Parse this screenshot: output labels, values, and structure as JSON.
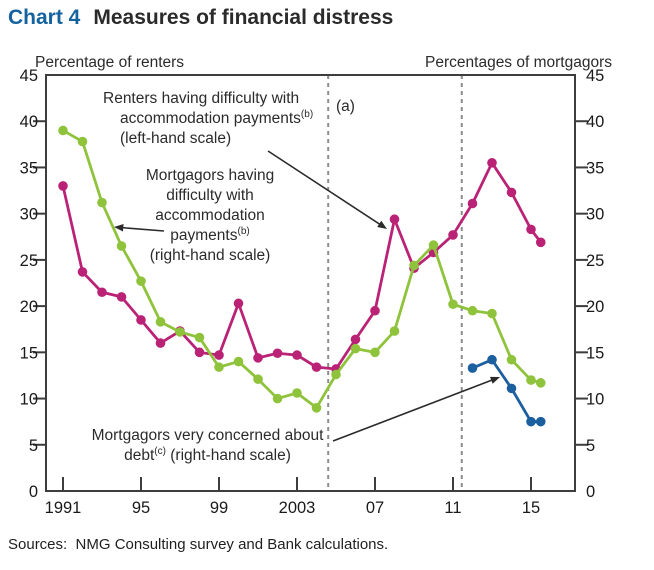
{
  "title": {
    "chart_number": "Chart 4",
    "text": "Measures of financial distress"
  },
  "axes": {
    "left_scale_title": "Percentage of renters",
    "right_scale_title": "Percentages of mortgagors",
    "y_min": 0,
    "y_max": 45,
    "y_tick_step": 5,
    "y_tick_labels": [
      "0",
      "5",
      "10",
      "15",
      "20",
      "25",
      "30",
      "35",
      "40",
      "45"
    ],
    "x_tick_labels": [
      "1991",
      "95",
      "99",
      "2003",
      "07",
      "11",
      "15"
    ],
    "x_tick_years": [
      1991,
      1995,
      1999,
      2003,
      2007,
      2011,
      2015
    ]
  },
  "chart_data": {
    "type": "line",
    "title": "Measures of financial distress",
    "xlabel": "",
    "ylabel_left": "Percentage of renters",
    "ylabel_right": "Percentages of mortgagors",
    "ylim": [
      0,
      45
    ],
    "grid": false,
    "dual_axis": true,
    "legend_position": "in-plot annotations with arrows",
    "series": [
      {
        "name": "Renters having difficulty with accommodation payments (left-hand scale)",
        "axis": "left",
        "color": "#ba2276",
        "x": [
          1991,
          1992,
          1993,
          1994,
          1995,
          1996,
          1997,
          1998,
          1999,
          2000,
          2001,
          2002,
          2003,
          2004,
          2005,
          2006,
          2007,
          2008,
          2009,
          2010,
          2011,
          2012,
          2013,
          2014,
          2015,
          2015.5
        ],
        "values": [
          33.0,
          23.7,
          21.5,
          21.0,
          18.5,
          16.0,
          17.3,
          15.0,
          14.7,
          20.3,
          14.4,
          14.9,
          14.7,
          13.4,
          13.2,
          16.4,
          19.5,
          29.4,
          24.1,
          25.8,
          27.7,
          31.1,
          35.5,
          32.3,
          28.3,
          26.9
        ]
      },
      {
        "name": "Mortgagors having difficulty with accommodation payments (right-hand scale)",
        "axis": "right",
        "color": "#90c33c",
        "x": [
          1991,
          1992,
          1993,
          1994,
          1995,
          1996,
          1997,
          1998,
          1999,
          2000,
          2001,
          2002,
          2003,
          2004,
          2005,
          2006,
          2007,
          2008,
          2009,
          2010,
          2011,
          2012,
          2013,
          2014,
          2015,
          2015.5
        ],
        "values": [
          39.0,
          37.8,
          31.2,
          26.5,
          22.7,
          18.3,
          17.2,
          16.6,
          13.4,
          14.0,
          12.1,
          10.0,
          10.6,
          9.0,
          12.6,
          15.4,
          15.0,
          17.3,
          24.4,
          26.6,
          20.2,
          19.5,
          19.2,
          14.2,
          12.0,
          11.7
        ]
      },
      {
        "name": "Mortgagors very concerned about debt (right-hand scale)",
        "axis": "right",
        "color": "#1c5f9f",
        "x": [
          2012,
          2013,
          2014,
          2015,
          2015.5
        ],
        "values": [
          13.3,
          14.2,
          11.1,
          7.5,
          7.5
        ]
      }
    ],
    "reference_lines": [
      {
        "year": 2004.6,
        "style": "dashed",
        "label": "(a)"
      },
      {
        "year": 2011.45,
        "style": "dashed",
        "label": ""
      }
    ]
  },
  "annotations": {
    "renters_label": {
      "line1": "Renters having difficulty with",
      "line2": "accommodation payments",
      "line2_sup": "(b)",
      "line3": "(left-hand scale)"
    },
    "mortgagors_label": {
      "line1": "Mortgagors having",
      "line2": "difficulty with",
      "line3": "accommodation",
      "line4": "payments",
      "line4_sup": "(b)",
      "line5": "(right-hand scale)"
    },
    "debt_label": {
      "line1": "Mortgagors very concerned about",
      "line2_pre": "debt",
      "line2_sup": "(c)",
      "line2_post": " (right-hand scale)"
    },
    "method_change_label": "(a)"
  },
  "colors": {
    "title_accent": "#14639e",
    "text": "#2b2b2b",
    "axis": "#3d3d3d",
    "dashed_reference": "#8c8c8c",
    "renters": "#ba2276",
    "mortgagors_difficulty": "#90c33c",
    "mortgagors_concerned": "#1c5f9f"
  },
  "source_line": "Sources:  NMG Consulting survey and Bank calculations."
}
